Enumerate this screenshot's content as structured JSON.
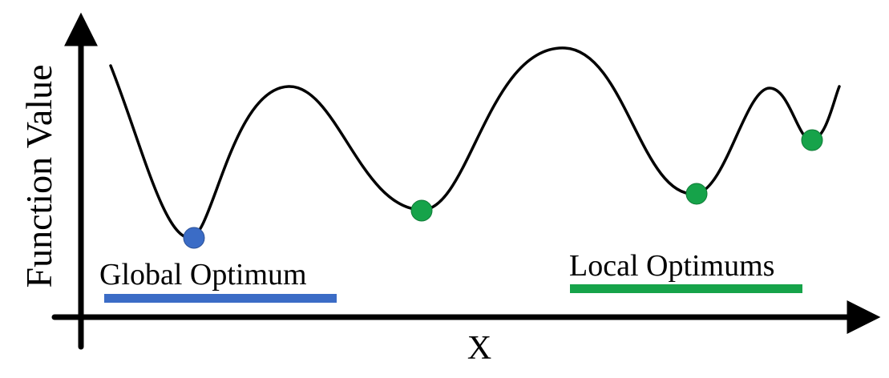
{
  "axes": {
    "y_label": "Function Value",
    "x_label": "X"
  },
  "legend": {
    "global": {
      "label": "Global Optimum",
      "color": "#3b6cc6"
    },
    "local": {
      "label": "Local Optimums",
      "color": "#16a34a"
    }
  },
  "colors": {
    "curve": "#000000",
    "axis": "#000000",
    "global_point": "#3b6cc6",
    "local_point": "#16a34a"
  }
}
